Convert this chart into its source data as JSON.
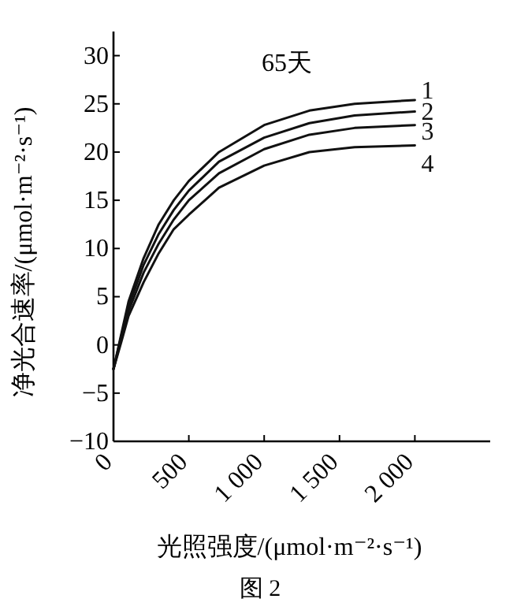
{
  "chart_data": {
    "type": "line",
    "title": "65天",
    "xlabel": "光照强度/(μmol·m⁻²·s⁻¹)",
    "ylabel": "净光合速率/(μmol·m⁻²·s⁻¹)",
    "annotations": [
      "图 2"
    ],
    "x": [
      0,
      50,
      100,
      200,
      300,
      400,
      500,
      700,
      1000,
      1300,
      1600,
      2000
    ],
    "series": [
      {
        "name": "1",
        "color": "#111111",
        "values": [
          -2.5,
          1,
          4.5,
          9,
          12.5,
          15,
          17,
          20,
          22.8,
          24.3,
          25,
          25.4
        ]
      },
      {
        "name": "2",
        "color": "#111111",
        "values": [
          -2.5,
          0.8,
          4,
          8.3,
          11.5,
          14,
          16,
          19,
          21.5,
          23,
          23.8,
          24.2
        ]
      },
      {
        "name": "3",
        "color": "#111111",
        "values": [
          -2.5,
          0.5,
          3.5,
          7.5,
          10.5,
          13,
          15,
          17.8,
          20.3,
          21.8,
          22.5,
          22.8
        ]
      },
      {
        "name": "4",
        "color": "#111111",
        "values": [
          -2.5,
          0.2,
          3,
          6.5,
          9.5,
          12,
          13.5,
          16.3,
          18.6,
          20,
          20.5,
          20.7
        ]
      }
    ],
    "xlim": [
      0,
      2500
    ],
    "ylim": [
      -10,
      32.5
    ],
    "xticks": [
      0,
      500,
      {
        "value": 1000,
        "label": "1 000"
      },
      {
        "value": 1500,
        "label": "1 500"
      },
      {
        "value": 2000,
        "label": "2 000"
      }
    ],
    "yticks": [
      -10,
      -5,
      0,
      5,
      10,
      15,
      20,
      25,
      30
    ]
  }
}
